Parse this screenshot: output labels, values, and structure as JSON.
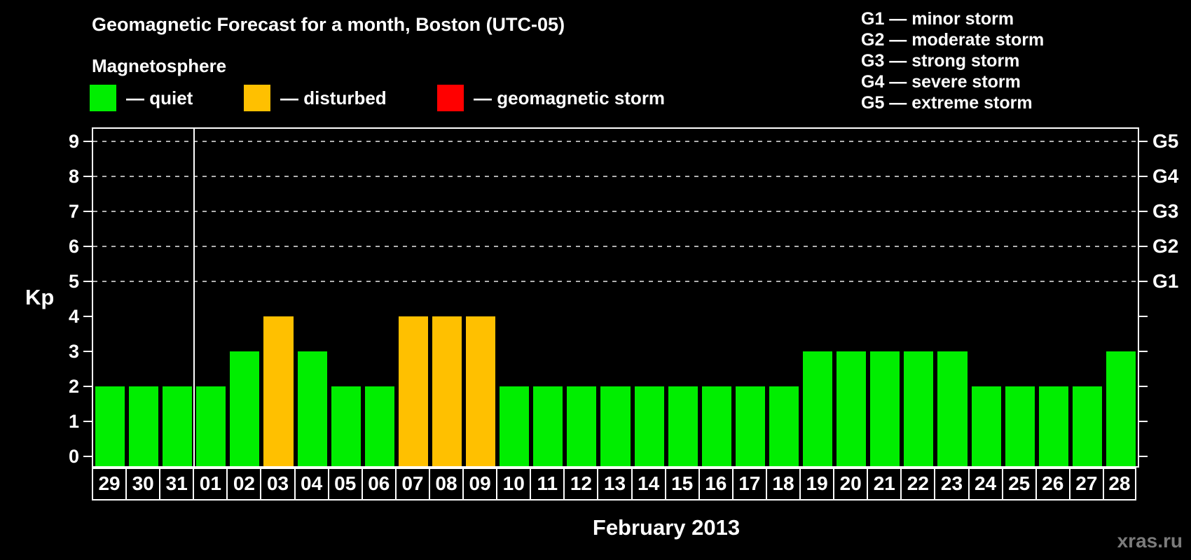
{
  "title": "Geomagnetic Forecast for a month, Boston (UTC-05)",
  "subtitle": "Magnetosphere",
  "legend": {
    "dash": "—",
    "items": [
      {
        "key": "quiet",
        "label": "quiet",
        "color": "#00EE00"
      },
      {
        "key": "disturbed",
        "label": "disturbed",
        "color": "#FFC000"
      },
      {
        "key": "storm",
        "label": "geomagnetic storm",
        "color": "#FF0000"
      }
    ]
  },
  "storm_scale": {
    "dash": "—",
    "items": [
      {
        "code": "G1",
        "desc": "minor storm"
      },
      {
        "code": "G2",
        "desc": "moderate storm"
      },
      {
        "code": "G3",
        "desc": "strong storm"
      },
      {
        "code": "G4",
        "desc": "severe storm"
      },
      {
        "code": "G5",
        "desc": "extreme storm"
      }
    ]
  },
  "axis": {
    "y_label": "Kp",
    "y_ticks": [
      0,
      1,
      2,
      3,
      4,
      5,
      6,
      7,
      8,
      9
    ],
    "g_labels": [
      {
        "text": "G1",
        "kp": 5
      },
      {
        "text": "G2",
        "kp": 6
      },
      {
        "text": "G3",
        "kp": 7
      },
      {
        "text": "G4",
        "kp": 8
      },
      {
        "text": "G5",
        "kp": 9
      }
    ],
    "grid_kp": [
      5,
      6,
      7,
      8,
      9
    ],
    "x_title": "February 2013"
  },
  "status_colors": {
    "quiet": "#00EE00",
    "disturbed": "#FFC000",
    "storm": "#FF0000"
  },
  "watermark": "xras.ru",
  "chart_data": {
    "type": "bar",
    "title": "Geomagnetic Forecast for a month, Boston (UTC-05)",
    "subtitle": "Magnetosphere",
    "xlabel": "February 2013",
    "ylabel": "Kp",
    "ylim": [
      0,
      9
    ],
    "grid": "dashed horizontal gridlines at Kp 5-9 only",
    "legend_position": "top-left",
    "right_axis_labels": [
      "G1",
      "G2",
      "G3",
      "G4",
      "G5"
    ],
    "right_axis_kp": [
      5,
      6,
      7,
      8,
      9
    ],
    "month_boundary_index": 3,
    "categories": [
      "29",
      "30",
      "31",
      "01",
      "02",
      "03",
      "04",
      "05",
      "06",
      "07",
      "08",
      "09",
      "10",
      "11",
      "12",
      "13",
      "14",
      "15",
      "16",
      "17",
      "18",
      "19",
      "20",
      "21",
      "22",
      "23",
      "24",
      "25",
      "26",
      "27",
      "28"
    ],
    "values": [
      2,
      2,
      2,
      2,
      3,
      4,
      3,
      2,
      2,
      4,
      4,
      4,
      2,
      2,
      2,
      2,
      2,
      2,
      2,
      2,
      2,
      3,
      3,
      3,
      3,
      3,
      2,
      2,
      2,
      2,
      3
    ],
    "statuses": [
      "quiet",
      "quiet",
      "quiet",
      "quiet",
      "quiet",
      "disturbed",
      "quiet",
      "quiet",
      "quiet",
      "disturbed",
      "disturbed",
      "disturbed",
      "quiet",
      "quiet",
      "quiet",
      "quiet",
      "quiet",
      "quiet",
      "quiet",
      "quiet",
      "quiet",
      "quiet",
      "quiet",
      "quiet",
      "quiet",
      "quiet",
      "quiet",
      "quiet",
      "quiet",
      "quiet",
      "quiet"
    ],
    "legend": [
      {
        "label": "quiet",
        "color": "#00EE00"
      },
      {
        "label": "disturbed",
        "color": "#FFC000"
      },
      {
        "label": "geomagnetic storm",
        "color": "#FF0000"
      }
    ]
  }
}
